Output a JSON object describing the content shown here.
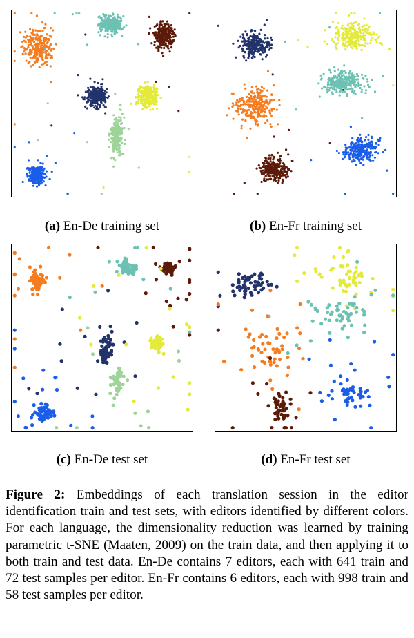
{
  "colors": {
    "editors": [
      "#f57c1f",
      "#22326b",
      "#6cc2b2",
      "#5c1a08",
      "#e4ea3a",
      "#1a5de8",
      "#9ed39a"
    ],
    "frame": "#000000"
  },
  "subcaptions": {
    "a": {
      "tag": "(a)",
      "text": "En-De training set"
    },
    "b": {
      "tag": "(b)",
      "text": "En-Fr training set"
    },
    "c": {
      "tag": "(c)",
      "text": "En-De test set"
    },
    "d": {
      "tag": "(d)",
      "text": "En-Fr test set"
    }
  },
  "caption": {
    "label": "Figure 2:",
    "text": "Embeddings of each translation session in the editor identification train and test sets, with editors identified by different colors. For each language, the dimensionality reduction was learned by training parametric t-SNE (Maaten, 2009) on the train data, and then applying it to both train and test data. En-De contains 7 editors, each with 641 train and 72 test samples per editor. En-Fr contains 6 editors, each with 998 train and 58 test samples per editor."
  },
  "chart_data": [
    {
      "type": "scatter",
      "panel": "a",
      "title": "",
      "xlabel": "",
      "ylabel": "",
      "xlim": [
        0,
        1
      ],
      "ylim": [
        0,
        1
      ],
      "grid": false,
      "series": [
        {
          "color": "#f57c1f",
          "cluster_center": [
            0.15,
            0.8
          ],
          "spread": [
            0.07,
            0.08
          ],
          "n": 641
        },
        {
          "color": "#6cc2b2",
          "cluster_center": [
            0.55,
            0.92
          ],
          "spread": [
            0.06,
            0.04
          ],
          "n": 641
        },
        {
          "color": "#5c1a08",
          "cluster_center": [
            0.84,
            0.86
          ],
          "spread": [
            0.05,
            0.06
          ],
          "n": 641
        },
        {
          "color": "#22326b",
          "cluster_center": [
            0.47,
            0.54
          ],
          "spread": [
            0.05,
            0.05
          ],
          "n": 641
        },
        {
          "color": "#e4ea3a",
          "cluster_center": [
            0.75,
            0.54
          ],
          "spread": [
            0.05,
            0.05
          ],
          "n": 641
        },
        {
          "color": "#9ed39a",
          "cluster_center": [
            0.58,
            0.33
          ],
          "spread": [
            0.03,
            0.1
          ],
          "n": 641
        },
        {
          "color": "#1a5de8",
          "cluster_center": [
            0.14,
            0.12
          ],
          "spread": [
            0.04,
            0.04
          ],
          "n": 641
        }
      ]
    },
    {
      "type": "scatter",
      "panel": "b",
      "title": "",
      "xlabel": "",
      "ylabel": "",
      "xlim": [
        0,
        1
      ],
      "ylim": [
        0,
        1
      ],
      "grid": false,
      "series": [
        {
          "color": "#22326b",
          "cluster_center": [
            0.22,
            0.81
          ],
          "spread": [
            0.07,
            0.06
          ],
          "n": 998
        },
        {
          "color": "#e4ea3a",
          "cluster_center": [
            0.76,
            0.86
          ],
          "spread": [
            0.1,
            0.06
          ],
          "n": 998
        },
        {
          "color": "#6cc2b2",
          "cluster_center": [
            0.7,
            0.61
          ],
          "spread": [
            0.1,
            0.05
          ],
          "n": 998
        },
        {
          "color": "#f57c1f",
          "cluster_center": [
            0.22,
            0.49
          ],
          "spread": [
            0.1,
            0.08
          ],
          "n": 998
        },
        {
          "color": "#5c1a08",
          "cluster_center": [
            0.33,
            0.15
          ],
          "spread": [
            0.07,
            0.06
          ],
          "n": 998
        },
        {
          "color": "#1a5de8",
          "cluster_center": [
            0.8,
            0.25
          ],
          "spread": [
            0.08,
            0.06
          ],
          "n": 998
        }
      ]
    },
    {
      "type": "scatter",
      "panel": "c",
      "title": "",
      "xlabel": "",
      "ylabel": "",
      "xlim": [
        0,
        1
      ],
      "ylim": [
        0,
        1
      ],
      "grid": false,
      "series": [
        {
          "color": "#f57c1f",
          "cluster_center": [
            0.14,
            0.8
          ],
          "spread": [
            0.04,
            0.05
          ],
          "n": 72
        },
        {
          "color": "#6cc2b2",
          "cluster_center": [
            0.64,
            0.87
          ],
          "spread": [
            0.05,
            0.04
          ],
          "n": 72
        },
        {
          "color": "#5c1a08",
          "cluster_center": [
            0.86,
            0.87
          ],
          "spread": [
            0.04,
            0.03
          ],
          "n": 72
        },
        {
          "color": "#22326b",
          "cluster_center": [
            0.52,
            0.42
          ],
          "spread": [
            0.03,
            0.07
          ],
          "n": 72
        },
        {
          "color": "#e4ea3a",
          "cluster_center": [
            0.8,
            0.47
          ],
          "spread": [
            0.03,
            0.04
          ],
          "n": 72
        },
        {
          "color": "#9ed39a",
          "cluster_center": [
            0.58,
            0.27
          ],
          "spread": [
            0.03,
            0.07
          ],
          "n": 72
        },
        {
          "color": "#1a5de8",
          "cluster_center": [
            0.18,
            0.1
          ],
          "spread": [
            0.05,
            0.04
          ],
          "n": 72
        }
      ]
    },
    {
      "type": "scatter",
      "panel": "d",
      "title": "",
      "xlabel": "",
      "ylabel": "",
      "xlim": [
        0,
        1
      ],
      "ylim": [
        0,
        1
      ],
      "grid": false,
      "series": [
        {
          "color": "#22326b",
          "cluster_center": [
            0.2,
            0.78
          ],
          "spread": [
            0.1,
            0.06
          ],
          "n": 58
        },
        {
          "color": "#e4ea3a",
          "cluster_center": [
            0.74,
            0.82
          ],
          "spread": [
            0.14,
            0.08
          ],
          "n": 58
        },
        {
          "color": "#6cc2b2",
          "cluster_center": [
            0.7,
            0.63
          ],
          "spread": [
            0.15,
            0.08
          ],
          "n": 58
        },
        {
          "color": "#f57c1f",
          "cluster_center": [
            0.3,
            0.43
          ],
          "spread": [
            0.16,
            0.1
          ],
          "n": 58
        },
        {
          "color": "#5c1a08",
          "cluster_center": [
            0.37,
            0.12
          ],
          "spread": [
            0.05,
            0.06
          ],
          "n": 58
        },
        {
          "color": "#1a5de8",
          "cluster_center": [
            0.74,
            0.2
          ],
          "spread": [
            0.12,
            0.06
          ],
          "n": 58
        }
      ]
    }
  ]
}
